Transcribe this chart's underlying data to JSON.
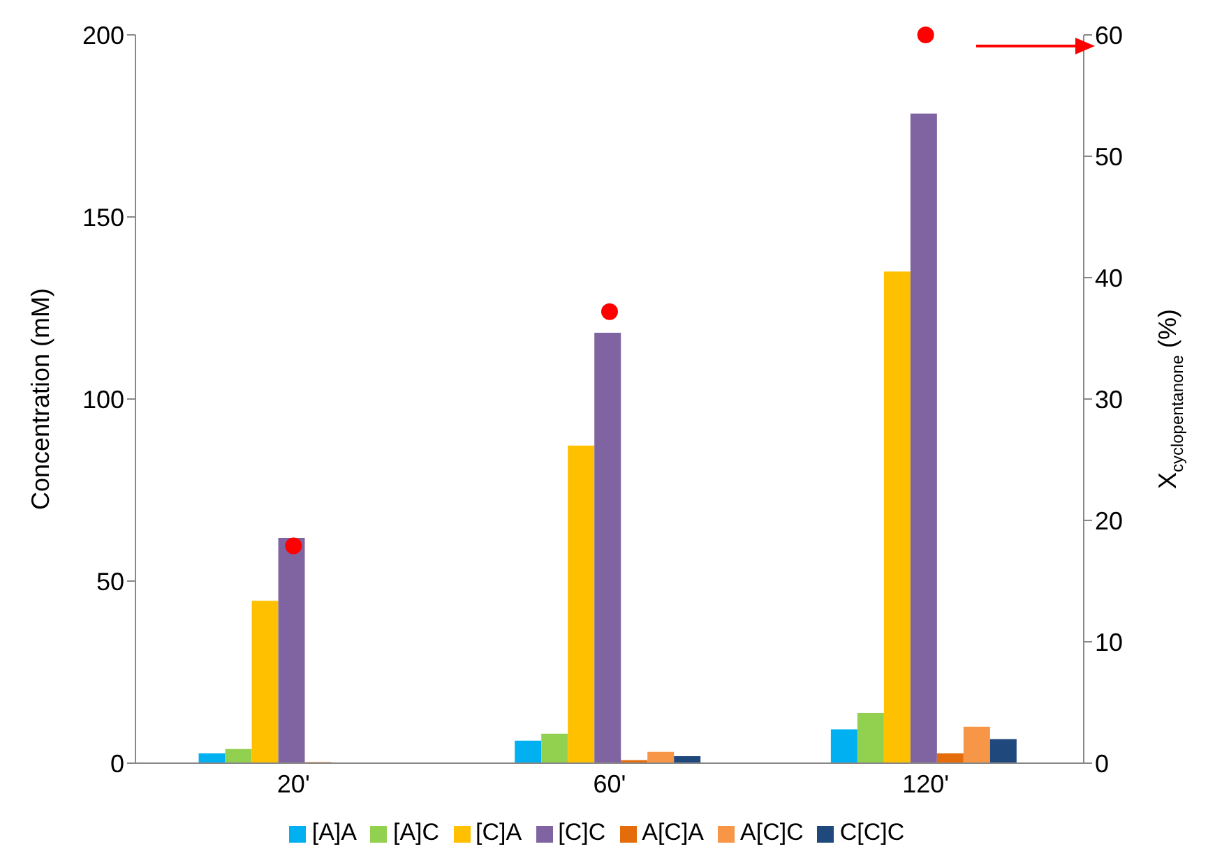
{
  "chart_data": {
    "type": "bar",
    "categories": [
      "20'",
      "60'",
      "120'"
    ],
    "ylabel": "Concentration (mM)",
    "y2label": "X$_{cyclopentanone}$ (%)",
    "ylim": [
      0,
      200
    ],
    "yticks": [
      0,
      50,
      100,
      150,
      200
    ],
    "y2lim": [
      0,
      60
    ],
    "y2ticks": [
      0,
      10,
      20,
      30,
      40,
      50,
      60
    ],
    "grid": false,
    "legend": "bottom",
    "series": [
      {
        "name": "[A]A",
        "color": "#00b0f0",
        "values": [
          2.7,
          6.2,
          9.3
        ]
      },
      {
        "name": "[A]C",
        "color": "#92d050",
        "values": [
          3.9,
          8.1,
          13.8
        ]
      },
      {
        "name": "[C]A",
        "color": "#ffc000",
        "values": [
          44.6,
          87.2,
          135
        ]
      },
      {
        "name": "[C]C",
        "color": "#8064a2",
        "values": [
          61.9,
          118.2,
          178.4
        ]
      },
      {
        "name": "A[C]A",
        "color": "#e46c0a",
        "values": [
          0.3,
          0.8,
          2.7
        ]
      },
      {
        "name": "A[C]C",
        "color": "#f79646",
        "values": [
          0,
          3.1,
          10
        ]
      },
      {
        "name": "C[C]C",
        "color": "#1f497d",
        "values": [
          0,
          1.9,
          6.6
        ]
      },
      {
        "type": "scatter",
        "axis": "y2",
        "color": "#ff0000",
        "marker": "circle",
        "values": [
          17.9,
          37.2,
          60
        ]
      }
    ]
  }
}
